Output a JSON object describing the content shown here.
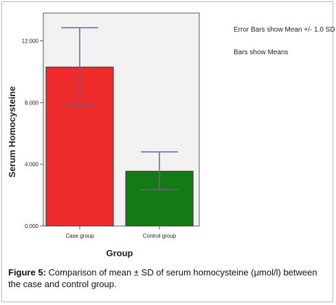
{
  "chart_data": {
    "type": "bar",
    "categories": [
      "Case group",
      "Control group"
    ],
    "values": [
      10.3,
      3.55
    ],
    "error_bars": [
      {
        "lower": 7.8,
        "upper": 12.85
      },
      {
        "lower": 2.35,
        "upper": 4.8
      }
    ],
    "xlabel": "Group",
    "ylabel": "Serum Homocysteine",
    "ylim": [
      0,
      13.8
    ],
    "yticks": [
      {
        "value": 0,
        "label": "0.000"
      },
      {
        "value": 4,
        "label": "4.000"
      },
      {
        "value": 8,
        "label": "8.000"
      },
      {
        "value": 12,
        "label": "12.000"
      }
    ],
    "bar_colors": [
      "#ee2b2b",
      "#137a14"
    ],
    "error_bar_color": "#7a5a8a",
    "grid": false
  },
  "notes": {
    "error_bars": "Error Bars show Mean +/- 1.0 SD",
    "bars": "Bars show Means"
  },
  "caption": {
    "label": "Figure 5:",
    "text": "Comparison of mean ± SD of serum homocysteine (μmol/l) between the case and control group."
  }
}
